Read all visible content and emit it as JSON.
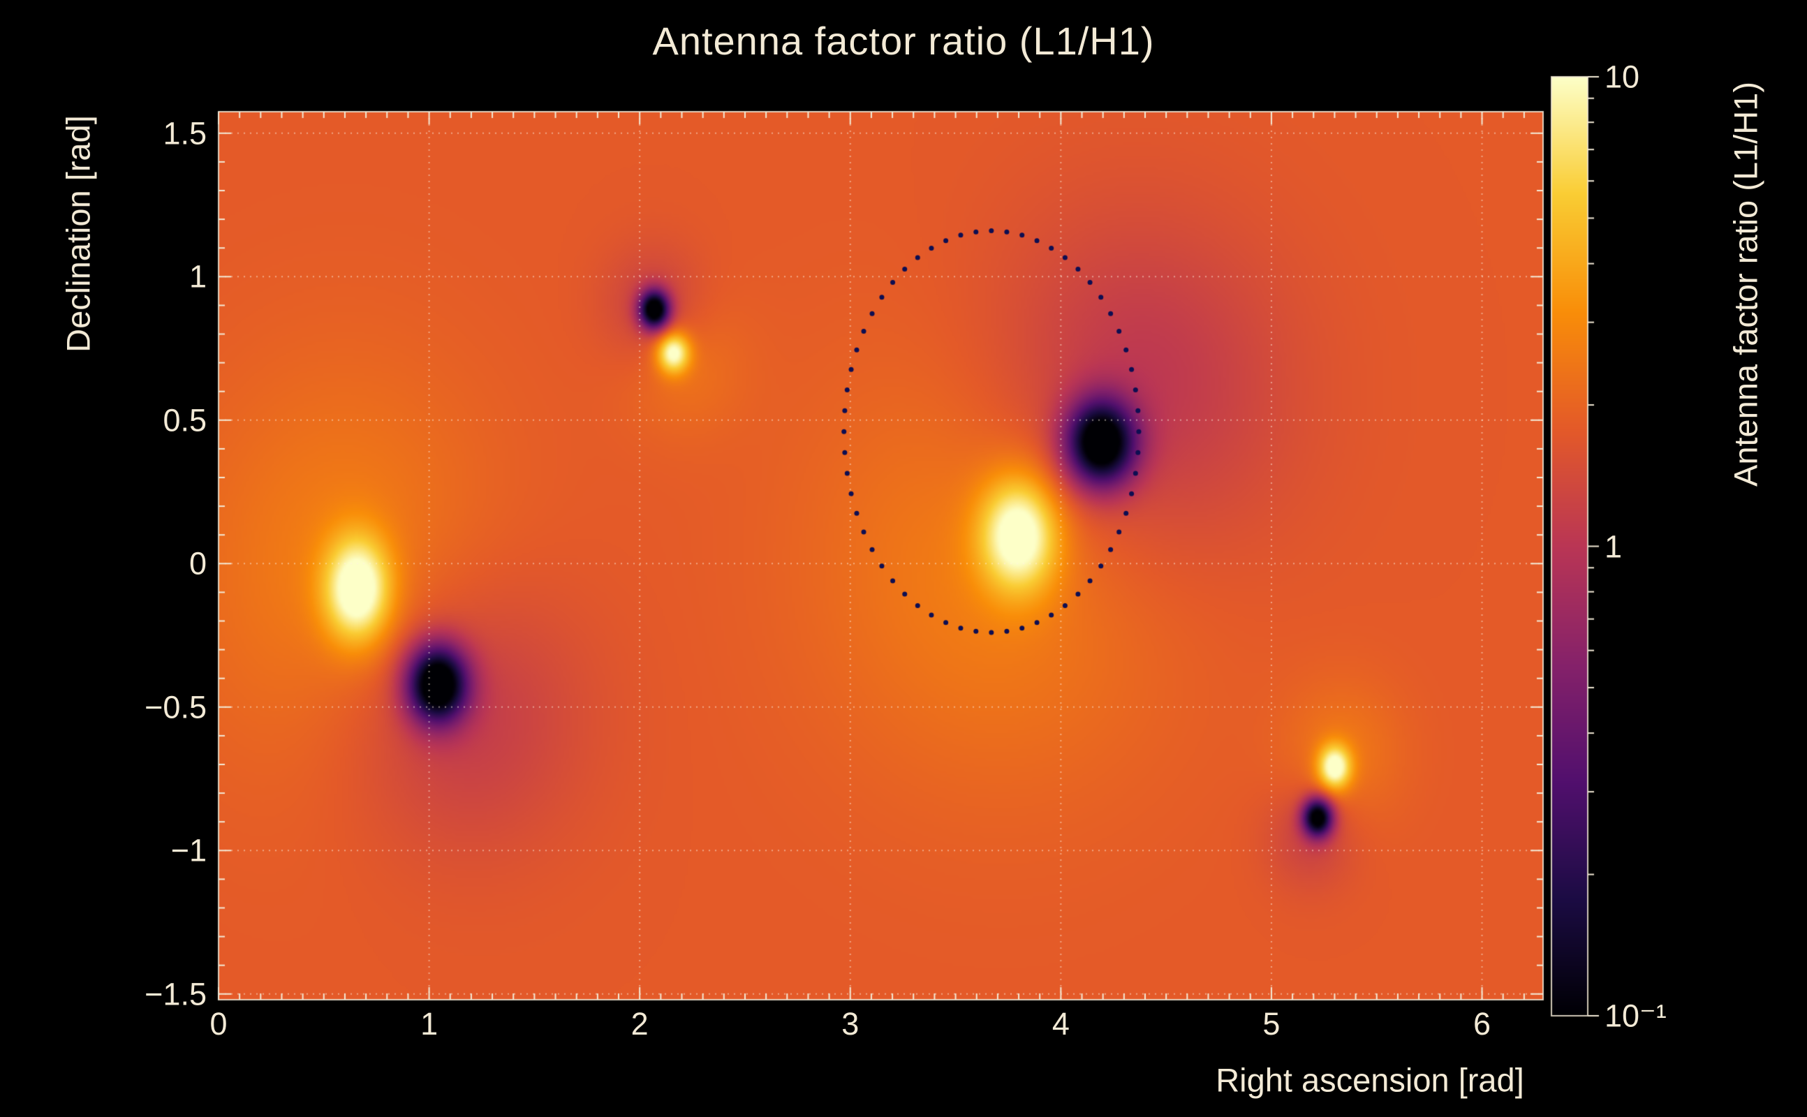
{
  "page": {
    "background": "#000000",
    "text_color": "#f3ead6"
  },
  "chart_data": {
    "type": "heatmap",
    "title": "Antenna factor ratio (L1/H1)",
    "xlabel": "Right ascension [rad]",
    "ylabel": "Declination [rad]",
    "xlim": [
      0,
      6.29
    ],
    "ylim": [
      -1.52,
      1.575
    ],
    "grid": true,
    "x_ticks": [
      {
        "value": 0,
        "label": "0"
      },
      {
        "value": 1,
        "label": "1"
      },
      {
        "value": 2,
        "label": "2"
      },
      {
        "value": 3,
        "label": "3"
      },
      {
        "value": 4,
        "label": "4"
      },
      {
        "value": 5,
        "label": "5"
      },
      {
        "value": 6,
        "label": "6"
      }
    ],
    "y_ticks": [
      {
        "value": -1.5,
        "label": "−1.5"
      },
      {
        "value": -1,
        "label": "−1"
      },
      {
        "value": -0.5,
        "label": "−0.5"
      },
      {
        "value": 0,
        "label": "0"
      },
      {
        "value": 0.5,
        "label": "0.5"
      },
      {
        "value": 1,
        "label": "1"
      },
      {
        "value": 1.5,
        "label": "1.5"
      }
    ],
    "colorbar": {
      "label": "Antenna factor ratio (L1/H1)",
      "scale": "log",
      "min": 0.1,
      "max": 10,
      "colormap": "inferno",
      "ticks": [
        {
          "value": 10,
          "label": "10"
        },
        {
          "value": 1,
          "label": "1"
        },
        {
          "value": 0.1,
          "label": "10⁻¹"
        }
      ]
    },
    "background_ratio": 1.78,
    "features": [
      {
        "kind": "max-core",
        "x": 0.66,
        "y": -0.09,
        "sx": 0.11,
        "sy": 0.13,
        "amp": 1.9
      },
      {
        "kind": "max-halo",
        "x": 0.6,
        "y": -0.04,
        "sx": 0.5,
        "sy": 0.5,
        "amp": 0.42
      },
      {
        "kind": "min-core",
        "x": 1.04,
        "y": -0.42,
        "sx": 0.1,
        "sy": 0.095,
        "amp": -3.4
      },
      {
        "kind": "min-halo",
        "x": 1.14,
        "y": -0.52,
        "sx": 0.4,
        "sy": 0.33,
        "amp": -0.55
      },
      {
        "kind": "min-core",
        "x": 2.07,
        "y": 0.885,
        "sx": 0.05,
        "sy": 0.047,
        "amp": -3.2
      },
      {
        "kind": "min-halo",
        "x": 2.07,
        "y": 0.885,
        "sx": 0.17,
        "sy": 0.15,
        "amp": -0.45
      },
      {
        "kind": "max-core",
        "x": 2.16,
        "y": 0.735,
        "sx": 0.055,
        "sy": 0.05,
        "amp": 1.8
      },
      {
        "kind": "max-halo",
        "x": 2.2,
        "y": 0.7,
        "sx": 0.2,
        "sy": 0.17,
        "amp": 0.3
      },
      {
        "kind": "max-core",
        "x": 3.8,
        "y": 0.1,
        "sx": 0.13,
        "sy": 0.14,
        "amp": 1.85
      },
      {
        "kind": "max-halo",
        "x": 3.72,
        "y": 0.02,
        "sx": 0.6,
        "sy": 0.52,
        "amp": 0.45
      },
      {
        "kind": "min-core",
        "x": 4.19,
        "y": 0.42,
        "sx": 0.115,
        "sy": 0.105,
        "amp": -3.3
      },
      {
        "kind": "min-halo",
        "x": 4.33,
        "y": 0.58,
        "sx": 0.5,
        "sy": 0.42,
        "amp": -0.65
      },
      {
        "kind": "max-core",
        "x": 5.3,
        "y": -0.71,
        "sx": 0.055,
        "sy": 0.055,
        "amp": 1.8
      },
      {
        "kind": "max-halo",
        "x": 5.34,
        "y": -0.66,
        "sx": 0.2,
        "sy": 0.18,
        "amp": 0.32
      },
      {
        "kind": "min-core",
        "x": 5.22,
        "y": -0.885,
        "sx": 0.05,
        "sy": 0.047,
        "amp": -3.1
      },
      {
        "kind": "min-halo",
        "x": 5.19,
        "y": -0.95,
        "sx": 0.15,
        "sy": 0.13,
        "amp": -0.4
      }
    ],
    "sky_ring": {
      "cx": 3.67,
      "cy": 0.46,
      "r": 0.7,
      "dots": 60,
      "dot_radius": 3.5
    }
  },
  "style": {
    "grid_color": "rgba(255,243,226,0.5)",
    "tick_color": "#f3ead6",
    "frame_color": "rgba(243,234,214,0.85)",
    "ring_color": "#0e0e52"
  }
}
